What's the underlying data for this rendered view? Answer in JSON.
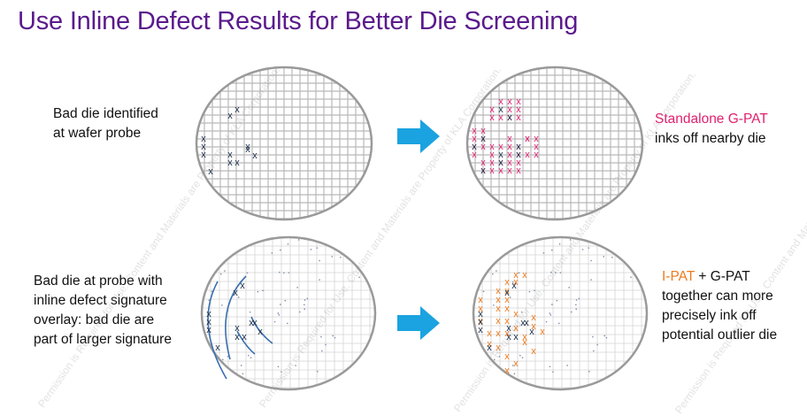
{
  "slide": {
    "title": "Use Inline Defect Results for Better Die Screening",
    "top_left_caption": [
      "Bad die identified",
      "at wafer probe"
    ],
    "top_right_caption": {
      "highlight": "Standalone G-PAT",
      "rest": "inks off nearby die"
    },
    "bottom_left_caption": [
      "Bad die at probe with",
      "inline defect signature",
      "overlay: bad die are",
      "part of larger signature"
    ],
    "bottom_right_caption": {
      "highlight": "I-PAT",
      "line1_rest": " + G-PAT",
      "line2": "together can more",
      "line3": "precisely ink off",
      "line4": "potential outlier die"
    },
    "watermark": "Permission is Required for Use. Content and Materials are Property of KLA Corporation.",
    "colors": {
      "title": "#5a1a8c",
      "gpat_pink": "#e0206f",
      "ipat_orange": "#ee7a1a",
      "arrow": "#1aa3e0",
      "bad_die_dark": "#1b2f4a",
      "signature_blue": "#3a6fb0"
    }
  }
}
